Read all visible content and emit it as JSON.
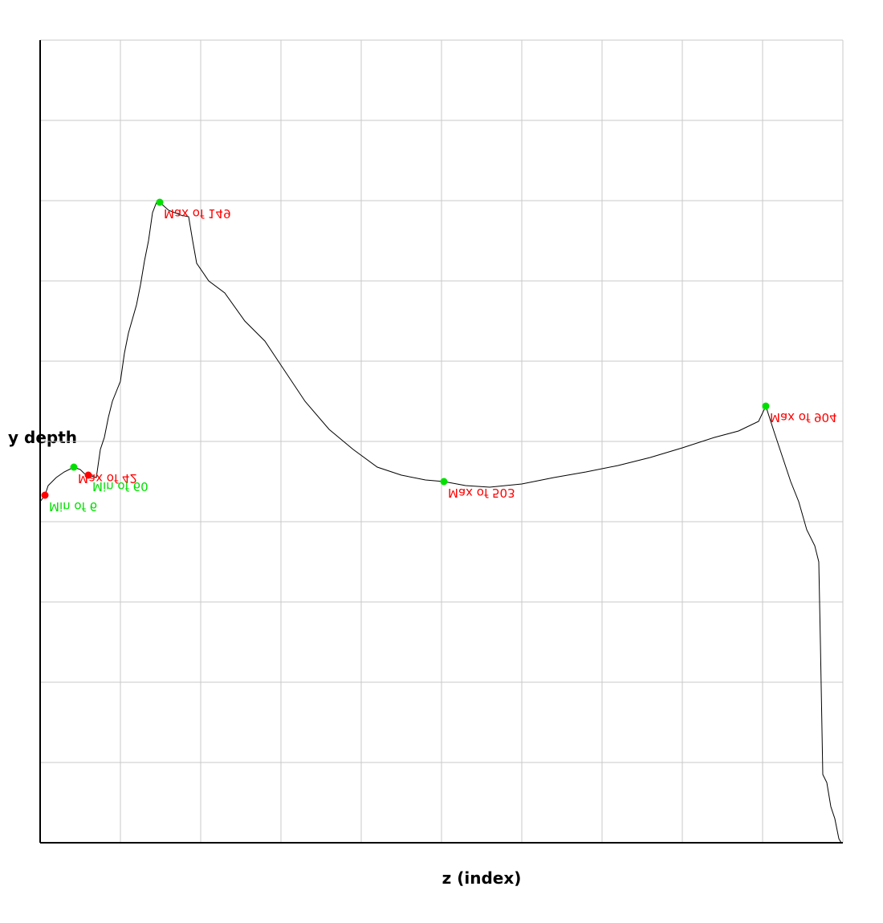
{
  "chart_data": {
    "type": "line",
    "xlabel": "z (index)",
    "ylabel": "y depth",
    "xlim": [
      0,
      1000
    ],
    "ylim": [
      0,
      1000
    ],
    "xticks": [
      0,
      100,
      200,
      300,
      400,
      500,
      600,
      700,
      800,
      900,
      1000
    ],
    "yticks": [
      0,
      100,
      200,
      300,
      400,
      500,
      600,
      700,
      800,
      900,
      1000
    ],
    "grid": true,
    "color": "#000000",
    "x": [
      0,
      6,
      10,
      20,
      30,
      42,
      50,
      55,
      60,
      70,
      75,
      80,
      85,
      90,
      100,
      105,
      110,
      120,
      125,
      130,
      135,
      140,
      145,
      149,
      160,
      175,
      185,
      190,
      195,
      210,
      230,
      255,
      280,
      300,
      330,
      360,
      390,
      420,
      450,
      480,
      503,
      530,
      560,
      600,
      640,
      680,
      720,
      760,
      800,
      840,
      870,
      895,
      904,
      915,
      925,
      935,
      945,
      955,
      965,
      970,
      972,
      975,
      980,
      985,
      990,
      995,
      998
    ],
    "values": [
      425,
      433,
      445,
      455,
      462,
      468,
      465,
      460,
      458,
      455,
      490,
      505,
      530,
      550,
      575,
      610,
      635,
      670,
      695,
      725,
      750,
      785,
      798,
      798,
      788,
      782,
      780,
      750,
      722,
      700,
      685,
      650,
      625,
      595,
      550,
      515,
      490,
      468,
      458,
      452,
      450,
      445,
      443,
      447,
      455,
      462,
      470,
      480,
      492,
      505,
      513,
      525,
      544,
      510,
      480,
      450,
      425,
      390,
      370,
      350,
      250,
      85,
      75,
      45,
      30,
      5,
      0
    ],
    "annotations": [
      {
        "x": 6,
        "y": 433,
        "text": "Min of 6",
        "text_color": "#00e000",
        "dot_color": "#ff0000"
      },
      {
        "x": 42,
        "y": 468,
        "text": "Max of 42",
        "text_color": "#ff0000",
        "dot_color": "#00e000"
      },
      {
        "x": 60,
        "y": 458,
        "text": "Min of 60",
        "text_color": "#00e000",
        "dot_color": "#ff0000"
      },
      {
        "x": 149,
        "y": 798,
        "text": "Max of 149",
        "text_color": "#ff0000",
        "dot_color": "#00e000"
      },
      {
        "x": 503,
        "y": 450,
        "text": "Max of 503",
        "text_color": "#ff0000",
        "dot_color": "#00e000"
      },
      {
        "x": 904,
        "y": 544,
        "text": "Max of 904",
        "text_color": "#ff0000",
        "dot_color": "#00e000"
      }
    ]
  }
}
